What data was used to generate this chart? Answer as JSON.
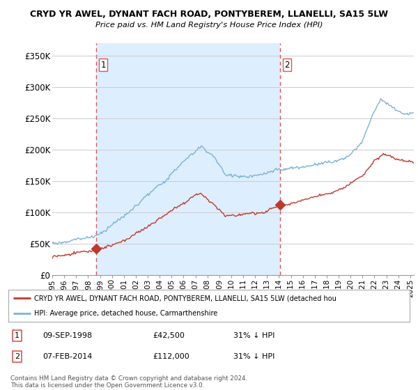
{
  "title_line1": "CRYD YR AWEL, DYNANT FACH ROAD, PONTYBEREM, LLANELLI, SA15 5LW",
  "title_line2": "Price paid vs. HM Land Registry's House Price Index (HPI)",
  "ylabel_ticks": [
    "£0",
    "£50K",
    "£100K",
    "£150K",
    "£200K",
    "£250K",
    "£300K",
    "£350K"
  ],
  "ytick_values": [
    0,
    50000,
    100000,
    150000,
    200000,
    250000,
    300000,
    350000
  ],
  "ylim": [
    0,
    370000
  ],
  "xlim_start": 1995.0,
  "xlim_end": 2025.3,
  "sale1_x": 1998.69,
  "sale1_y": 42500,
  "sale1_label": "1",
  "sale2_x": 2014.1,
  "sale2_y": 112000,
  "sale2_label": "2",
  "hpi_color": "#7ab3d9",
  "price_color": "#c0392b",
  "vline_color": "#e05555",
  "shade_color": "#ddeeff",
  "background_color": "#ffffff",
  "grid_color": "#cccccc",
  "legend_label_price": "CRYD YR AWEL, DYNANT FACH ROAD, PONTYBEREM, LLANELLI, SA15 5LW (detached hou",
  "legend_label_hpi": "HPI: Average price, detached house, Carmarthenshire",
  "footer_text": "Contains HM Land Registry data © Crown copyright and database right 2024.\nThis data is licensed under the Open Government Licence v3.0.",
  "table_rows": [
    {
      "num": "1",
      "date": "09-SEP-1998",
      "price": "£42,500",
      "pct": "31% ↓ HPI"
    },
    {
      "num": "2",
      "date": "07-FEB-2014",
      "price": "£112,000",
      "pct": "31% ↓ HPI"
    }
  ]
}
